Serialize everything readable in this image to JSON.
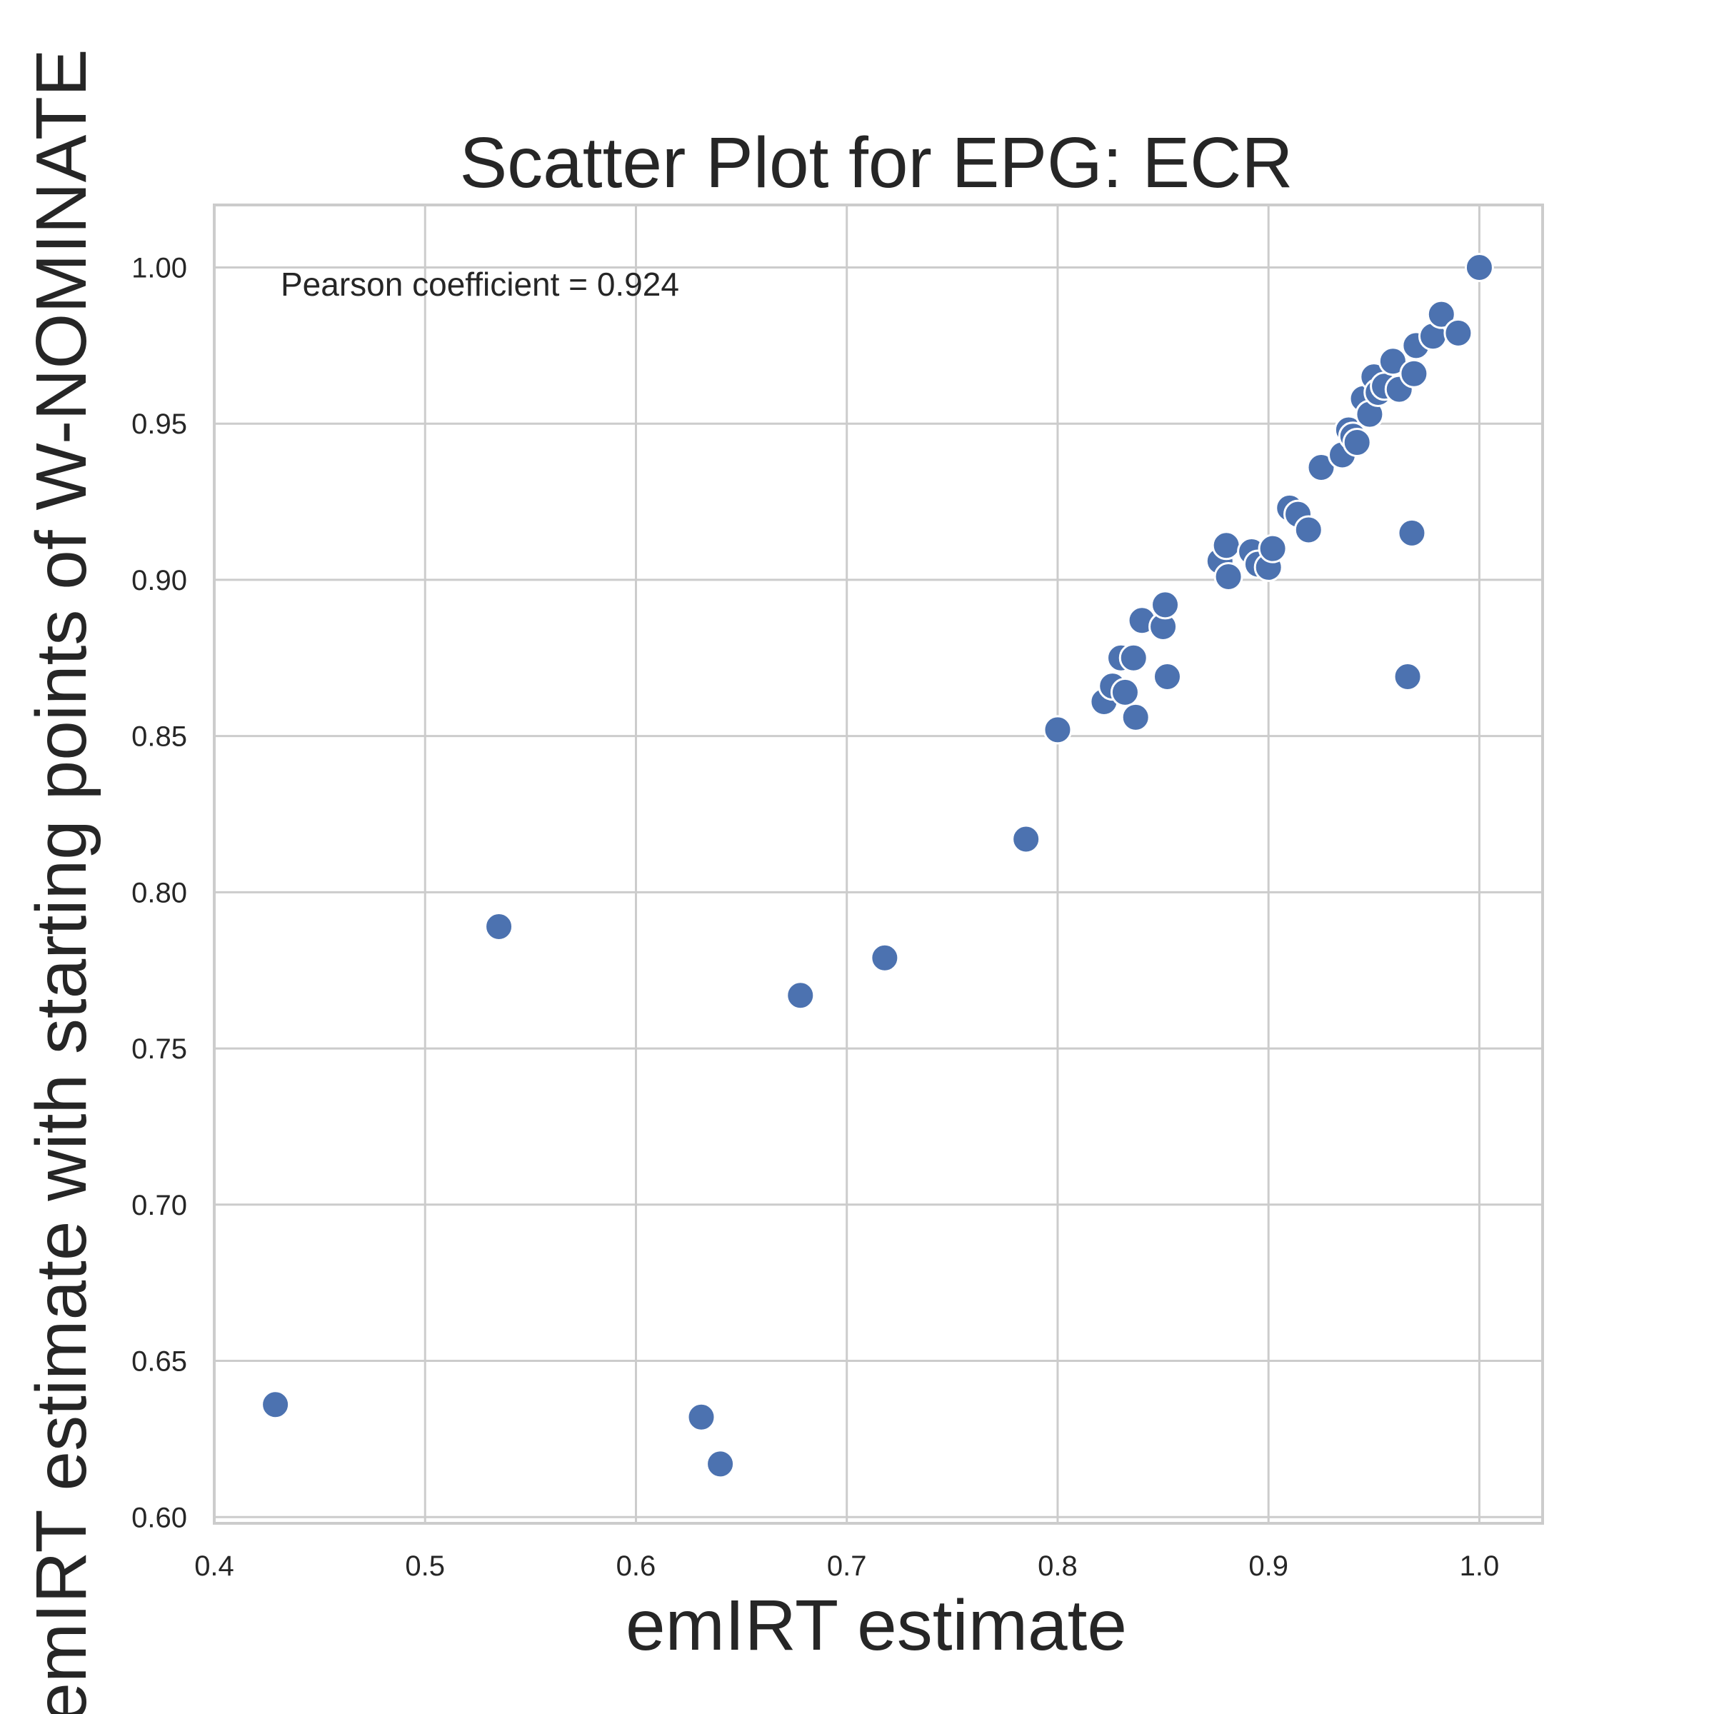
{
  "chart_data": {
    "type": "scatter",
    "title": "Scatter Plot for EPG: ECR",
    "xlabel": "emIRT estimate",
    "ylabel": "emIRT estimate with starting points of W-NOMINATE",
    "annotation": "Pearson coefficient = 0.924",
    "xlim": [
      0.4,
      1.03
    ],
    "ylim": [
      0.598,
      1.02
    ],
    "xticks": [
      0.4,
      0.5,
      0.6,
      0.7,
      0.8,
      0.9,
      1.0
    ],
    "xtick_labels": [
      "0.4",
      "0.5",
      "0.6",
      "0.7",
      "0.8",
      "0.9",
      "1.0"
    ],
    "yticks": [
      0.6,
      0.65,
      0.7,
      0.75,
      0.8,
      0.85,
      0.9,
      0.95,
      1.0
    ],
    "ytick_labels": [
      "0.60",
      "0.65",
      "0.70",
      "0.75",
      "0.80",
      "0.85",
      "0.90",
      "0.95",
      "1.00"
    ],
    "grid": true,
    "marker_color": "#4c72b0",
    "marker_edge_color": "#ffffff",
    "grid_color": "#cccccc",
    "x": [
      0.429,
      0.535,
      0.631,
      0.64,
      0.678,
      0.718,
      0.785,
      0.8,
      0.822,
      0.826,
      0.83,
      0.832,
      0.836,
      0.837,
      0.84,
      0.85,
      0.851,
      0.852,
      0.877,
      0.88,
      0.881,
      0.892,
      0.895,
      0.9,
      0.902,
      0.91,
      0.914,
      0.919,
      0.925,
      0.935,
      0.938,
      0.94,
      0.942,
      0.945,
      0.948,
      0.95,
      0.952,
      0.955,
      0.959,
      0.962,
      0.966,
      0.968,
      0.969,
      0.97,
      0.978,
      0.982,
      0.99,
      1.0
    ],
    "y": [
      0.636,
      0.789,
      0.632,
      0.617,
      0.767,
      0.779,
      0.817,
      0.852,
      0.861,
      0.866,
      0.875,
      0.864,
      0.875,
      0.856,
      0.887,
      0.885,
      0.892,
      0.869,
      0.906,
      0.911,
      0.901,
      0.909,
      0.905,
      0.904,
      0.91,
      0.923,
      0.921,
      0.916,
      0.936,
      0.94,
      0.948,
      0.946,
      0.944,
      0.958,
      0.953,
      0.965,
      0.96,
      0.962,
      0.97,
      0.961,
      0.869,
      0.915,
      0.966,
      0.975,
      0.978,
      0.985,
      0.979,
      1.0
    ]
  }
}
